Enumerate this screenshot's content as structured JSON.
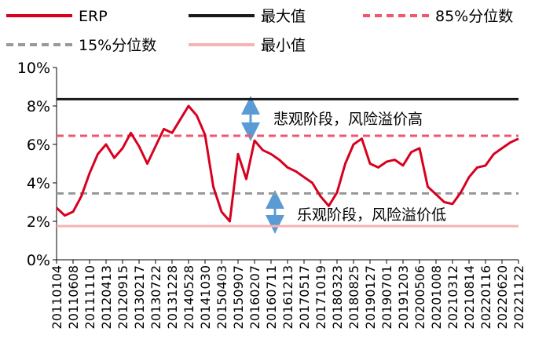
{
  "chart_data": {
    "type": "line",
    "categories": [
      "20110104",
      null,
      "20110608",
      null,
      "20111110",
      null,
      "20120413",
      null,
      "20120915",
      null,
      "20130217",
      null,
      "20130722",
      null,
      "20131228",
      null,
      "20140528",
      null,
      "20141030",
      null,
      "20150403",
      null,
      "20150907",
      null,
      "20160207",
      null,
      "20160711",
      null,
      "20161213",
      null,
      "20170517",
      null,
      "20171019",
      null,
      "20180323",
      null,
      "20180825",
      null,
      "20190127",
      null,
      "20190701",
      null,
      "20191203",
      null,
      "20200506",
      null,
      "20201008",
      null,
      "20210312",
      null,
      "20210814",
      null,
      "20220116",
      null,
      "20220620",
      null,
      "20221122"
    ],
    "series": [
      {
        "name": "ERP",
        "color": "#d7001f",
        "values": [
          2.7,
          2.3,
          2.5,
          3.3,
          4.5,
          5.5,
          6.0,
          5.3,
          5.8,
          6.6,
          5.9,
          5.0,
          5.9,
          6.8,
          6.6,
          7.3,
          8.0,
          7.5,
          6.5,
          3.8,
          2.5,
          2.0,
          5.5,
          4.2,
          6.2,
          5.7,
          5.5,
          5.2,
          4.8,
          4.6,
          4.3,
          4.0,
          3.3,
          2.8,
          3.5,
          5.0,
          6.0,
          6.3,
          5.0,
          4.8,
          5.1,
          5.2,
          4.9,
          5.6,
          5.8,
          3.8,
          3.4,
          3.0,
          2.9,
          3.5,
          4.3,
          4.8,
          4.9,
          5.5,
          5.8,
          6.1,
          6.3
        ]
      }
    ],
    "reference_lines": [
      {
        "name": "最大值",
        "color": "#1a1a1a",
        "value": 8.35,
        "dashed": false
      },
      {
        "name": "85%分位数",
        "color": "#f0566e",
        "value": 6.45,
        "dashed": true
      },
      {
        "name": "15%分位数",
        "color": "#999999",
        "value": 3.45,
        "dashed": true
      },
      {
        "name": "最小值",
        "color": "#f7b3b3",
        "value": 1.75,
        "dashed": false
      }
    ],
    "annotations": [
      "悲观阶段，风险溢价高",
      "乐观阶段，风险溢价低"
    ],
    "ylim": [
      0,
      10
    ],
    "yticks": [
      {
        "value": 0,
        "label": "0%"
      },
      {
        "value": 2,
        "label": "2%"
      },
      {
        "value": 4,
        "label": "4%"
      },
      {
        "value": 6,
        "label": "6%"
      },
      {
        "value": 8,
        "label": "8%"
      },
      {
        "value": 10,
        "label": "10%"
      }
    ]
  }
}
